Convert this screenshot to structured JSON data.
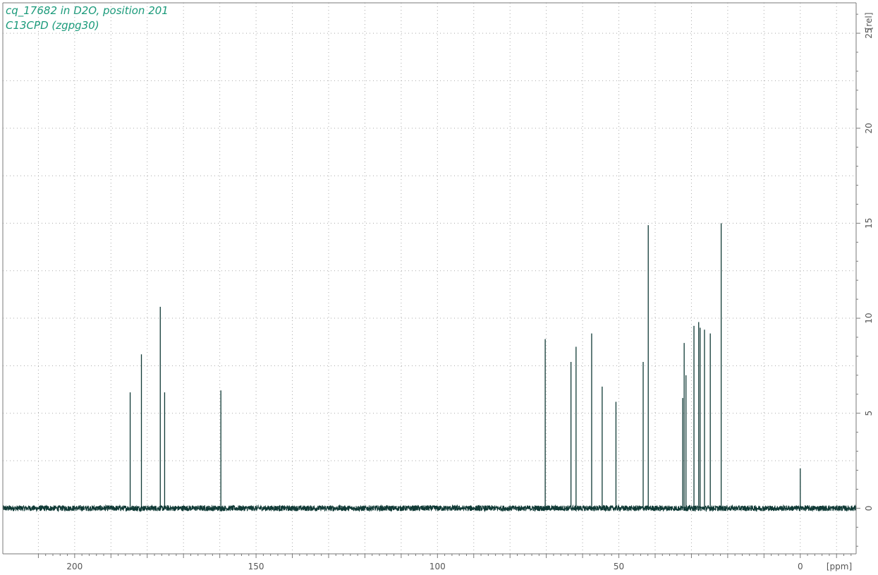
{
  "chart_data": {
    "type": "line",
    "title": "cq_17682 in D2O, position 201",
    "subtitle": "C13CPD (zgpg30)",
    "xlabel": "[ppm]",
    "ylabel": "[rel]",
    "xlim": [
      219.8,
      -15.4
    ],
    "ylim": [
      -2.4,
      26.6
    ],
    "x_ticks": [
      200,
      150,
      100,
      50,
      0
    ],
    "y_ticks": [
      0,
      5,
      10,
      15,
      20,
      25
    ],
    "x_minor_step": 10,
    "y_grid_step": 2.5,
    "grid": true,
    "baseline": 0,
    "noise_amplitude": 0.15,
    "peaks": [
      {
        "x": 184.7,
        "y": 6.1
      },
      {
        "x": 181.6,
        "y": 8.1
      },
      {
        "x": 176.4,
        "y": 10.6
      },
      {
        "x": 175.2,
        "y": 6.1
      },
      {
        "x": 159.7,
        "y": 6.2
      },
      {
        "x": 70.3,
        "y": 8.9
      },
      {
        "x": 63.2,
        "y": 7.7
      },
      {
        "x": 61.8,
        "y": 8.5
      },
      {
        "x": 57.5,
        "y": 9.2
      },
      {
        "x": 54.6,
        "y": 6.4
      },
      {
        "x": 50.8,
        "y": 5.6
      },
      {
        "x": 43.3,
        "y": 7.7
      },
      {
        "x": 41.9,
        "y": 14.9
      },
      {
        "x": 32.4,
        "y": 5.8
      },
      {
        "x": 32.0,
        "y": 8.7
      },
      {
        "x": 31.5,
        "y": 7.0
      },
      {
        "x": 29.3,
        "y": 9.6
      },
      {
        "x": 28.0,
        "y": 9.8
      },
      {
        "x": 27.6,
        "y": 9.5
      },
      {
        "x": 26.4,
        "y": 9.4
      },
      {
        "x": 24.8,
        "y": 9.2
      },
      {
        "x": 21.8,
        "y": 15.0
      },
      {
        "x": 0.0,
        "y": 2.1
      }
    ],
    "colors": {
      "spectrum": "#103a36",
      "axis": "#7a7a7a",
      "grid": "#a9a9a9",
      "text": "#555555",
      "title": "#1a9a7a"
    }
  }
}
